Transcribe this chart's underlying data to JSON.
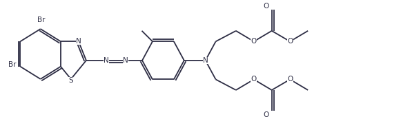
{
  "bg_color": "#ffffff",
  "line_color": "#2d2d44",
  "line_width": 1.3,
  "font_size": 7.5,
  "figsize": [
    5.81,
    1.89
  ],
  "dpi": 100,
  "xlim": [
    0,
    10.5
  ],
  "ylim": [
    0,
    3.2
  ]
}
